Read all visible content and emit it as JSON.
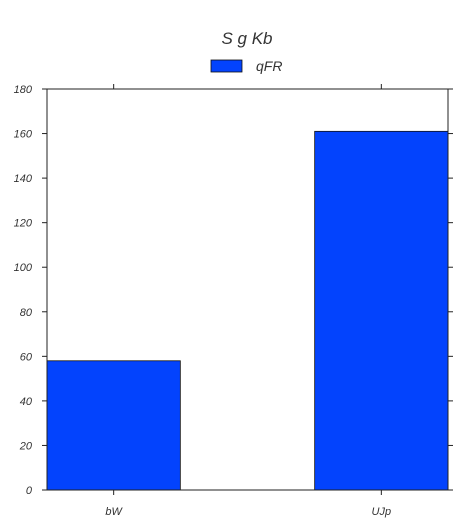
{
  "chart_data": {
    "type": "bar",
    "title": "S g Kb",
    "categories": [
      "bW",
      "UJp"
    ],
    "series": [
      {
        "name": "qFR",
        "values": [
          58,
          161
        ],
        "color": "#0343fd"
      }
    ],
    "yticks": [
      0,
      20,
      40,
      60,
      80,
      100,
      120,
      140,
      160,
      180
    ],
    "ylim": [
      0,
      180
    ],
    "grid": false,
    "legend_position": "top-center",
    "xlabel": "",
    "ylabel": ""
  }
}
